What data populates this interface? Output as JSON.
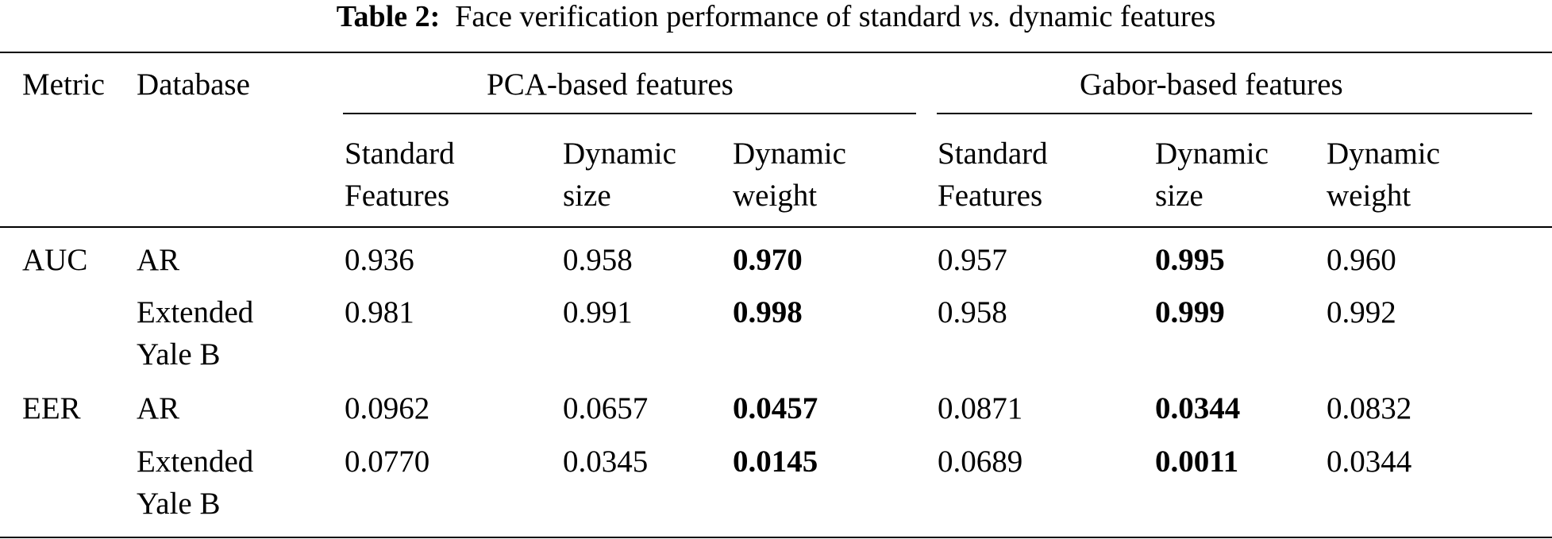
{
  "caption": {
    "label": "Table 2:",
    "text_before": "Face verification performance of standard",
    "em": "vs.",
    "text_after": "dynamic features"
  },
  "table": {
    "headers": {
      "metric": "Metric",
      "database": "Database",
      "pca_group": "PCA-based features",
      "gabor_group": "Gabor-based features",
      "pca_standard": [
        "Standard",
        "Features"
      ],
      "pca_dyn_size": [
        "Dynamic",
        "size"
      ],
      "pca_dyn_weight": [
        "Dynamic",
        "weight"
      ],
      "gabor_standard": [
        "Standard",
        "Features"
      ],
      "gabor_dyn_size": [
        "Dynamic",
        "size"
      ],
      "gabor_dyn_weight": [
        "Dynamic",
        "weight"
      ]
    },
    "rows": [
      {
        "metric": "AUC",
        "database": [
          "AR"
        ],
        "values": [
          "0.936",
          "0.958",
          "0.970",
          "0.957",
          "0.995",
          "0.960"
        ],
        "bold": [
          false,
          false,
          true,
          false,
          true,
          false
        ]
      },
      {
        "metric": "",
        "database": [
          "Extended",
          "Yale B"
        ],
        "values": [
          "0.981",
          "0.991",
          "0.998",
          "0.958",
          "0.999",
          "0.992"
        ],
        "bold": [
          false,
          false,
          true,
          false,
          true,
          false
        ]
      },
      {
        "metric": "EER",
        "database": [
          "AR"
        ],
        "values": [
          "0.0962",
          "0.0657",
          "0.0457",
          "0.0871",
          "0.0344",
          "0.0832"
        ],
        "bold": [
          false,
          false,
          true,
          false,
          true,
          false
        ]
      },
      {
        "metric": "",
        "database": [
          "Extended",
          "Yale B"
        ],
        "values": [
          "0.0770",
          "0.0345",
          "0.0145",
          "0.0689",
          "0.0011",
          "0.0344"
        ],
        "bold": [
          false,
          false,
          true,
          false,
          true,
          false
        ]
      }
    ]
  }
}
